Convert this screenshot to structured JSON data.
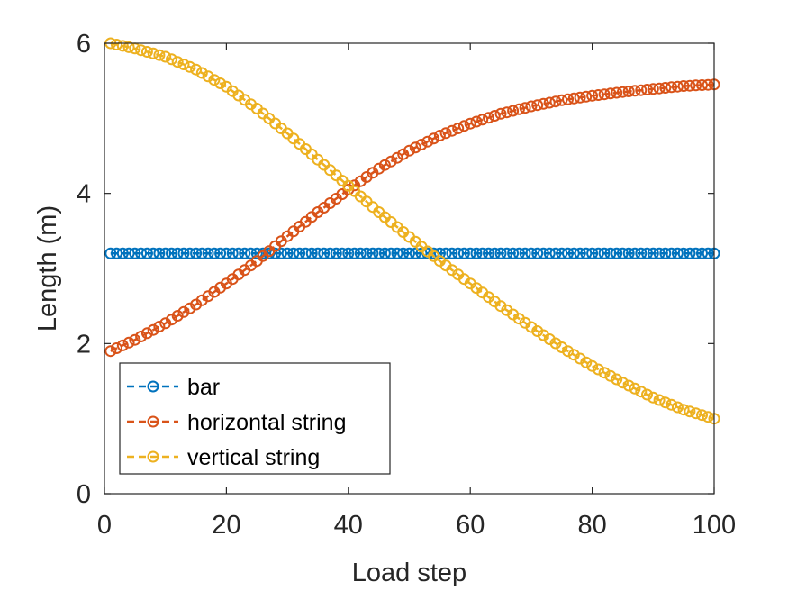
{
  "chart_data": {
    "type": "line",
    "xlabel": "Load step",
    "ylabel": "Length (m)",
    "xlim": [
      0,
      100
    ],
    "ylim": [
      0,
      6
    ],
    "xticks": [
      "0",
      "20",
      "40",
      "60",
      "80",
      "100"
    ],
    "yticks": [
      "0",
      "2",
      "4",
      "6"
    ],
    "grid": false,
    "legend_position": "bottom-left",
    "x": [
      1,
      5,
      10,
      15,
      20,
      25,
      30,
      35,
      40,
      45,
      50,
      55,
      60,
      65,
      70,
      75,
      80,
      85,
      90,
      95,
      100
    ],
    "series": [
      {
        "name": "bar",
        "color": "#0072BD",
        "values": [
          3.2,
          3.2,
          3.2,
          3.2,
          3.2,
          3.2,
          3.2,
          3.2,
          3.2,
          3.2,
          3.2,
          3.2,
          3.2,
          3.2,
          3.2,
          3.2,
          3.2,
          3.2,
          3.2,
          3.2,
          3.2
        ]
      },
      {
        "name": "horizontal string",
        "color": "#D95319",
        "values": [
          1.9,
          2.05,
          2.27,
          2.52,
          2.8,
          3.1,
          3.43,
          3.75,
          4.05,
          4.33,
          4.57,
          4.77,
          4.93,
          5.06,
          5.16,
          5.24,
          5.3,
          5.35,
          5.39,
          5.43,
          5.45
        ]
      },
      {
        "name": "vertical string",
        "color": "#EDB120",
        "values": [
          6.0,
          5.93,
          5.82,
          5.65,
          5.42,
          5.13,
          4.8,
          4.45,
          4.1,
          3.75,
          3.42,
          3.1,
          2.8,
          2.5,
          2.22,
          1.95,
          1.7,
          1.48,
          1.28,
          1.12,
          1.0
        ]
      }
    ]
  }
}
